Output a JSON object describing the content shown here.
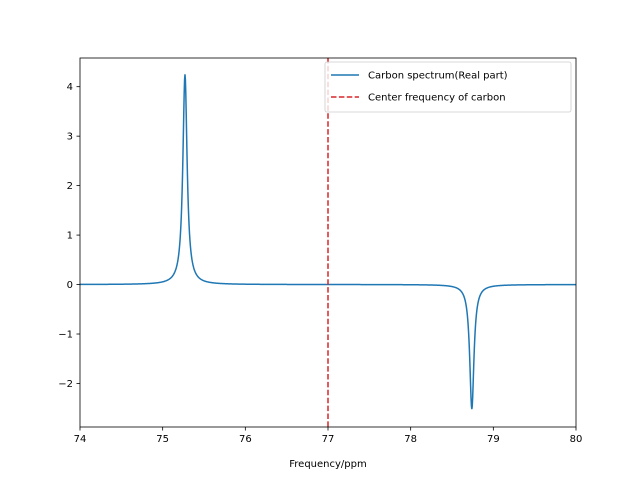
{
  "chart_data": {
    "type": "line",
    "title": "",
    "xlabel": "Frequency/ppm",
    "ylabel": "",
    "xlim": [
      74,
      80
    ],
    "ylim": [
      -2.88,
      4.58
    ],
    "xticks": [
      74,
      75,
      76,
      77,
      78,
      79,
      80
    ],
    "xtick_labels": [
      "74",
      "75",
      "76",
      "77",
      "78",
      "79",
      "80"
    ],
    "yticks": [
      -2,
      -1,
      0,
      1,
      2,
      3,
      4
    ],
    "ytick_labels": [
      "−2",
      "−1",
      "0",
      "1",
      "2",
      "3",
      "4"
    ],
    "grid": false,
    "legend_position": "upper right",
    "series": [
      {
        "name": "Carbon spectrum(Real part)",
        "color": "#1f77b4",
        "style": "solid",
        "peaks": [
          {
            "center": 75.27,
            "amplitude": 4.25,
            "half_width": 0.031
          },
          {
            "center": 78.74,
            "amplitude": -2.52,
            "half_width": 0.031
          }
        ]
      }
    ],
    "reference_lines": [
      {
        "name": "Center frequency of carbon",
        "orientation": "vertical",
        "x": 77,
        "color": "#d62728",
        "style": "dashed"
      }
    ]
  }
}
